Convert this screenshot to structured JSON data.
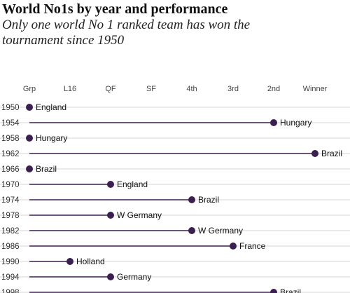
{
  "title": "World No1s by year and performance",
  "subtitle": "Only one world No 1 ranked team has won the tournament since 1950",
  "chart_data": {
    "type": "lollipop",
    "stages": [
      "Grp",
      "L16",
      "QF",
      "SF",
      "4th",
      "3rd",
      "2nd",
      "Winner"
    ],
    "rows": [
      {
        "year": "1950",
        "team": "England",
        "stage": "Grp"
      },
      {
        "year": "1954",
        "team": "Hungary",
        "stage": "2nd"
      },
      {
        "year": "1958",
        "team": "Hungary",
        "stage": "Grp"
      },
      {
        "year": "1962",
        "team": "Brazil",
        "stage": "Winner"
      },
      {
        "year": "1966",
        "team": "Brazil",
        "stage": "Grp"
      },
      {
        "year": "1970",
        "team": "England",
        "stage": "QF"
      },
      {
        "year": "1974",
        "team": "Brazil",
        "stage": "4th"
      },
      {
        "year": "1978",
        "team": "W Germany",
        "stage": "QF"
      },
      {
        "year": "1982",
        "team": "W Germany",
        "stage": "4th"
      },
      {
        "year": "1986",
        "team": "France",
        "stage": "3rd"
      },
      {
        "year": "1990",
        "team": "Holland",
        "stage": "L16"
      },
      {
        "year": "1994",
        "team": "Germany",
        "stage": "QF"
      },
      {
        "year": "1998",
        "team": "Brazil",
        "stage": "2nd"
      }
    ],
    "colors": {
      "line": "#3a1f4f",
      "dot": "#3a1f4f",
      "grid": "#d6d6d6"
    }
  }
}
